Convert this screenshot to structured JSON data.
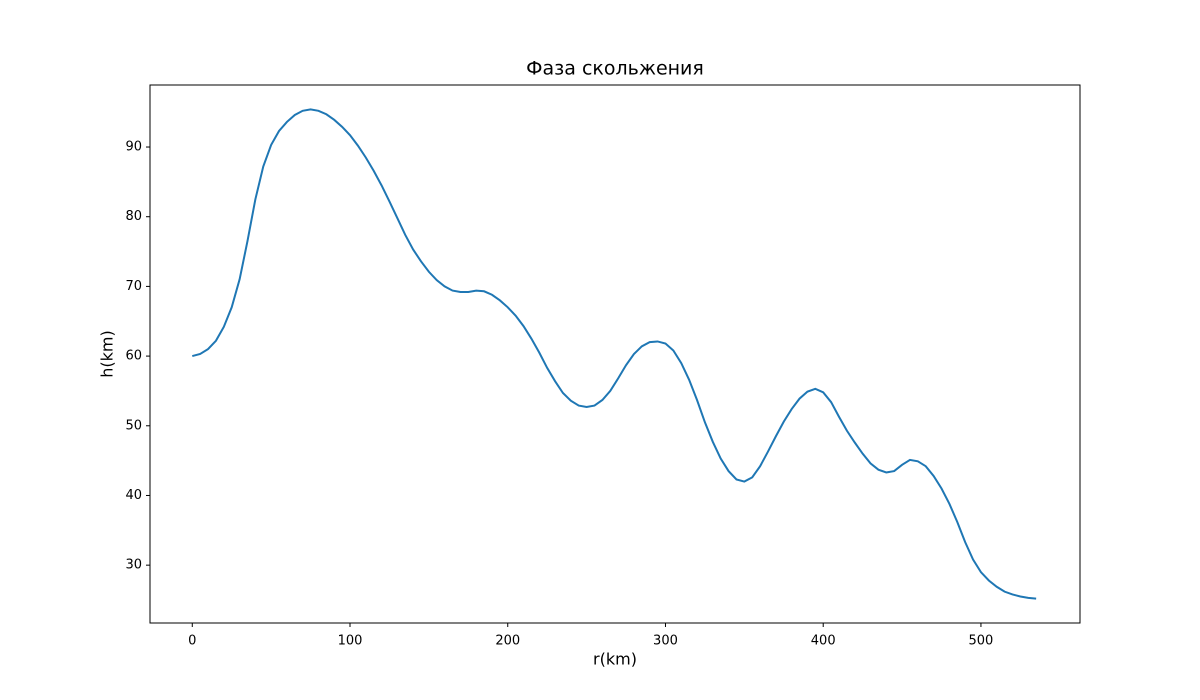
{
  "chart_data": {
    "type": "line",
    "title": "Фаза скольжения",
    "x_label": "r(km)",
    "y_label": "h(km)",
    "x": [
      0,
      5,
      10,
      15,
      20,
      25,
      30,
      35,
      40,
      45,
      50,
      55,
      60,
      65,
      70,
      75,
      80,
      85,
      90,
      95,
      100,
      105,
      110,
      115,
      120,
      125,
      130,
      135,
      140,
      145,
      150,
      155,
      160,
      165,
      170,
      175,
      180,
      185,
      190,
      195,
      200,
      205,
      210,
      215,
      220,
      225,
      230,
      235,
      240,
      245,
      250,
      255,
      260,
      265,
      270,
      275,
      280,
      285,
      290,
      295,
      300,
      305,
      310,
      315,
      320,
      325,
      330,
      335,
      340,
      345,
      350,
      355,
      360,
      365,
      370,
      375,
      380,
      385,
      390,
      395,
      400,
      405,
      410,
      415,
      420,
      425,
      430,
      435,
      440,
      445,
      450,
      455,
      460,
      465,
      470,
      475,
      480,
      485,
      490,
      495,
      500,
      505,
      510,
      515,
      520,
      525,
      530,
      535
    ],
    "series": [
      {
        "name": "h",
        "color": "#1f77b4",
        "values": [
          60,
          60.3,
          61,
          62.2,
          64.2,
          67,
          71,
          76.5,
          82.5,
          87.2,
          90.3,
          92.3,
          93.6,
          94.6,
          95.2,
          95.4,
          95.2,
          94.7,
          93.9,
          92.9,
          91.7,
          90.2,
          88.5,
          86.6,
          84.5,
          82.2,
          79.8,
          77.4,
          75.3,
          73.6,
          72.1,
          70.9,
          70,
          69.4,
          69.2,
          69.2,
          69.4,
          69.3,
          68.8,
          68,
          67,
          65.8,
          64.3,
          62.5,
          60.5,
          58.3,
          56.4,
          54.7,
          53.6,
          52.9,
          52.7,
          52.9,
          53.7,
          55,
          56.8,
          58.7,
          60.3,
          61.4,
          62,
          62.1,
          61.8,
          60.8,
          59,
          56.6,
          53.7,
          50.5,
          47.7,
          45.3,
          43.5,
          42.3,
          42,
          42.6,
          44.2,
          46.3,
          48.5,
          50.6,
          52.4,
          53.9,
          54.9,
          55.3,
          54.8,
          53.4,
          51.3,
          49.3,
          47.6,
          46,
          44.6,
          43.7,
          43.3,
          43.5,
          44.4,
          45.1,
          44.9,
          44.2,
          42.8,
          41,
          38.8,
          36.2,
          33.3,
          30.8,
          29,
          27.8,
          26.9,
          26.2,
          25.8,
          25.5,
          25.3,
          25.2
        ]
      }
    ],
    "xlim": [
      -26.8,
      562.8
    ],
    "ylim": [
      21.7,
      98.9
    ],
    "xticks": [
      0,
      100,
      200,
      300,
      400,
      500
    ],
    "yticks": [
      30,
      40,
      50,
      60,
      70,
      80,
      90
    ]
  }
}
